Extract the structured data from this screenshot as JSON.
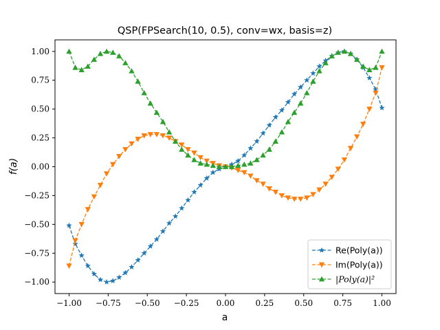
{
  "chart_data": {
    "type": "line",
    "title": "QSP(FPSearch(10, 0.5), conv=wx, basis=z)",
    "xlabel": "a",
    "ylabel": "f(a)",
    "xlim": [
      -1.09,
      1.09
    ],
    "ylim": [
      -1.1,
      1.1
    ],
    "xticks": [
      "−1.00",
      "−0.75",
      "−0.50",
      "−0.25",
      "0.00",
      "0.25",
      "0.50",
      "0.75",
      "1.00"
    ],
    "xtick_values": [
      -1.0,
      -0.75,
      -0.5,
      -0.25,
      0.0,
      0.25,
      0.5,
      0.75,
      1.0
    ],
    "yticks": [
      "−1.00",
      "−0.75",
      "−0.50",
      "−0.25",
      "0.00",
      "0.25",
      "0.50",
      "0.75",
      "1.00"
    ],
    "ytick_values": [
      -1.0,
      -0.75,
      -0.5,
      -0.25,
      0.0,
      0.25,
      0.5,
      0.75,
      1.0
    ],
    "grid": false,
    "legend_position": "lower-right",
    "x": [
      -1.0,
      -0.96,
      -0.92,
      -0.88,
      -0.84,
      -0.8,
      -0.76,
      -0.72,
      -0.68,
      -0.64,
      -0.6,
      -0.56,
      -0.52,
      -0.48,
      -0.44,
      -0.4,
      -0.36,
      -0.32,
      -0.28,
      -0.24,
      -0.2,
      -0.16,
      -0.12,
      -0.08,
      -0.04,
      0.0,
      0.04,
      0.08,
      0.12,
      0.16,
      0.2,
      0.24,
      0.28,
      0.32,
      0.36,
      0.4,
      0.44,
      0.48,
      0.52,
      0.56,
      0.6,
      0.64,
      0.68,
      0.72,
      0.76,
      0.8,
      0.84,
      0.88,
      0.92,
      0.96,
      1.0
    ],
    "series": [
      {
        "name": "Re(Poly(a))",
        "color": "#1f77b4",
        "marker": "star",
        "values": [
          -0.51,
          -0.67,
          -0.77,
          -0.86,
          -0.93,
          -0.98,
          -1.0,
          -0.99,
          -0.96,
          -0.92,
          -0.87,
          -0.81,
          -0.75,
          -0.69,
          -0.63,
          -0.56,
          -0.49,
          -0.43,
          -0.36,
          -0.29,
          -0.22,
          -0.16,
          -0.1,
          -0.05,
          -0.02,
          0.0,
          0.02,
          0.05,
          0.1,
          0.16,
          0.22,
          0.29,
          0.36,
          0.43,
          0.49,
          0.56,
          0.63,
          0.69,
          0.75,
          0.81,
          0.87,
          0.92,
          0.96,
          0.99,
          1.0,
          0.98,
          0.93,
          0.86,
          0.77,
          0.67,
          0.51
        ]
      },
      {
        "name": "Im(Poly(a))",
        "color": "#ff7f0e",
        "marker": "triangle-down",
        "values": [
          -0.86,
          -0.64,
          -0.5,
          -0.37,
          -0.26,
          -0.16,
          -0.06,
          0.02,
          0.09,
          0.15,
          0.2,
          0.24,
          0.27,
          0.28,
          0.28,
          0.27,
          0.25,
          0.22,
          0.19,
          0.15,
          0.12,
          0.08,
          0.05,
          0.03,
          0.01,
          0.0,
          -0.01,
          -0.03,
          -0.05,
          -0.08,
          -0.12,
          -0.15,
          -0.19,
          -0.22,
          -0.25,
          -0.27,
          -0.28,
          -0.28,
          -0.27,
          -0.24,
          -0.2,
          -0.15,
          -0.09,
          -0.02,
          0.06,
          0.16,
          0.26,
          0.37,
          0.5,
          0.64,
          0.86
        ]
      },
      {
        "name": "|Poly(a)|²",
        "color": "#2ca02c",
        "marker": "triangle-up",
        "values": [
          1.0,
          0.86,
          0.84,
          0.87,
          0.93,
          0.98,
          1.0,
          0.99,
          0.96,
          0.9,
          0.83,
          0.74,
          0.64,
          0.55,
          0.47,
          0.39,
          0.3,
          0.22,
          0.15,
          0.1,
          0.06,
          0.03,
          0.02,
          0.01,
          0.0,
          0.0,
          0.0,
          0.01,
          0.02,
          0.03,
          0.06,
          0.1,
          0.15,
          0.22,
          0.3,
          0.39,
          0.47,
          0.55,
          0.64,
          0.74,
          0.83,
          0.9,
          0.96,
          0.99,
          1.0,
          0.98,
          0.93,
          0.87,
          0.84,
          0.86,
          1.0
        ]
      }
    ]
  }
}
